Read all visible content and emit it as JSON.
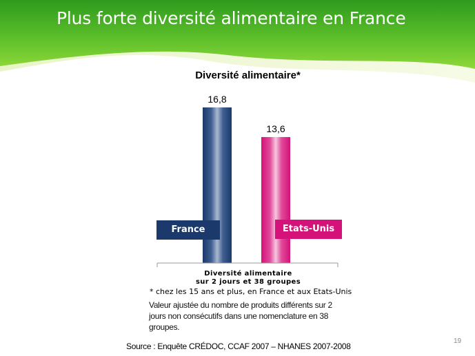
{
  "slide": {
    "title": "Plus forte diversité alimentaire en France",
    "page_number": "19"
  },
  "colors": {
    "banner_green": "#5cbf2a",
    "france": "#1b3a6b",
    "usa": "#d4127a"
  },
  "chart_data": {
    "type": "bar",
    "title": "Diversité alimentaire*",
    "categories": [
      "Diversité alimentaire sur 2 jours et 38 groupes"
    ],
    "series": [
      {
        "name": "France",
        "values": [
          16.8
        ],
        "label": "16,8"
      },
      {
        "name": "Etats-Unis",
        "values": [
          13.6
        ],
        "label": "13,6"
      }
    ],
    "category_label_line1": "Diversité alimentaire",
    "category_label_line2": "sur 2 jours et 38 groupes",
    "ylim": [
      0,
      16.8
    ],
    "grid": false,
    "legend": "inside-bottom"
  },
  "notes": {
    "footnote": "* chez les 15 ans et plus, en France et aux Etats-Unis",
    "adjustment": "Valeur ajustée du nombre de produits différents sur 2 jours non consécutifs dans une nomenclature en 38 groupes.",
    "source": "Source : Enquête CRÉDOC, CCAF 2007 – NHANES 2007-2008"
  }
}
